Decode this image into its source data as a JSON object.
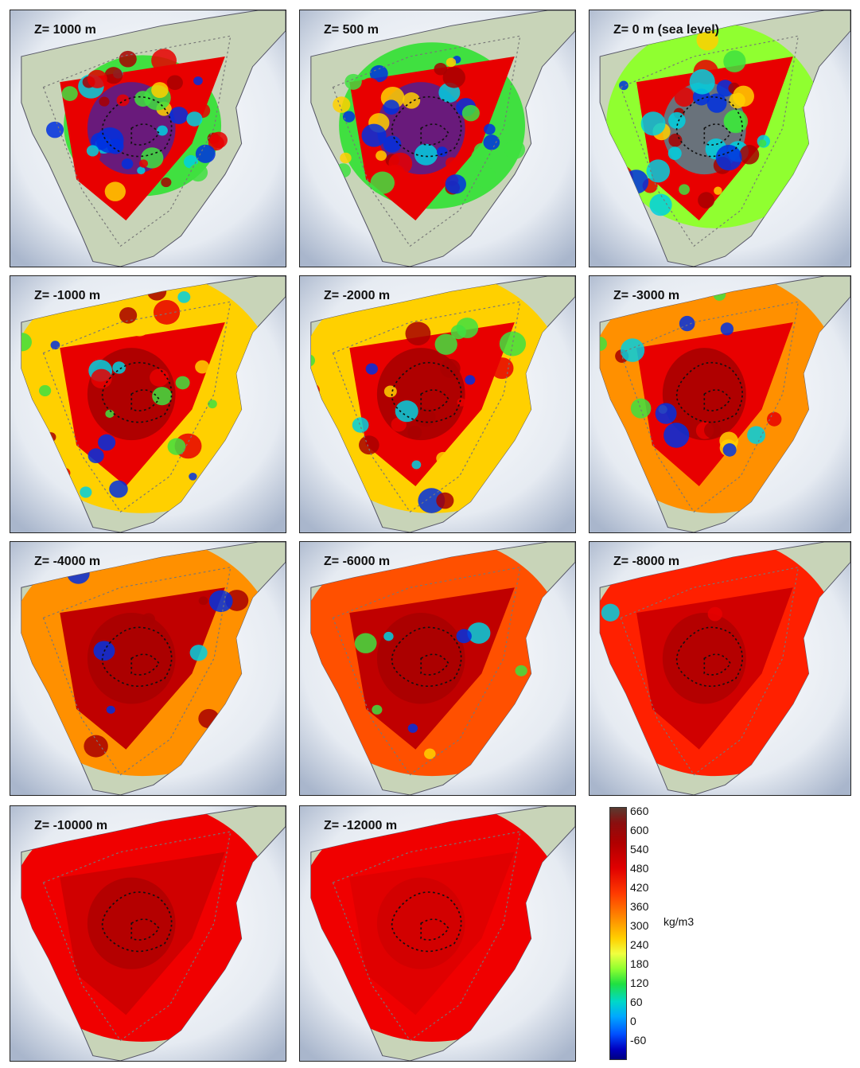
{
  "panels": [
    {
      "label": "Z= 1000 m"
    },
    {
      "label": "Z= 500 m"
    },
    {
      "label": "Z= 0 m (sea level)"
    },
    {
      "label": "Z= -1000 m"
    },
    {
      "label": "Z= -2000 m"
    },
    {
      "label": "Z= -3000 m"
    },
    {
      "label": "Z= -4000 m"
    },
    {
      "label": "Z= -6000 m"
    },
    {
      "label": "Z= -8000 m"
    },
    {
      "label": "Z= -10000 m"
    },
    {
      "label": "Z= -12000 m"
    }
  ],
  "legend": {
    "unit": "kg/m3",
    "ticks": [
      "660",
      "600",
      "540",
      "480",
      "420",
      "360",
      "300",
      "240",
      "180",
      "120",
      "60",
      "0",
      "-60"
    ]
  },
  "colors": {
    "sea": "#dfe5ee",
    "land": "#c8d4b8",
    "dark_red": "#a80000",
    "red": "#e80000",
    "orange": "#ff9000",
    "yellow": "#ffd000",
    "green": "#40e040",
    "cyan": "#00d0e0",
    "blue": "#0030e0"
  }
}
